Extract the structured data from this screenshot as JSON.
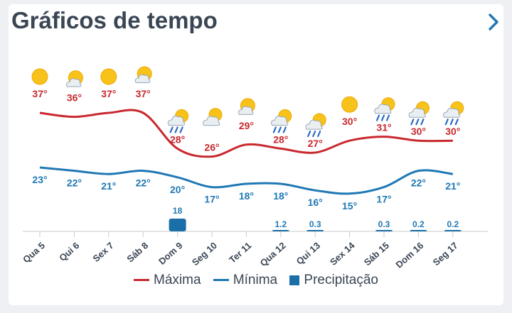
{
  "title": "Gráficos de tempo",
  "colors": {
    "max": "#c8292f",
    "min": "#1f78b4",
    "precip": "#1a6fa8",
    "grid": "#c9c9c9",
    "text": "#3a4654"
  },
  "legend": {
    "max": "Máxima",
    "min": "Mínima",
    "precip": "Precipitação"
  },
  "chart_data": {
    "type": "line",
    "categories": [
      "Qua 5",
      "Qui 6",
      "Sex 7",
      "Sáb 8",
      "Dom 9",
      "Seg 10",
      "Ter 11",
      "Qua 12",
      "Qui 13",
      "Sex 14",
      "Sáb 15",
      "Dom 16",
      "Seg 17"
    ],
    "icons": [
      "sun-icon",
      "partly-cloudy-icon",
      "sun-icon",
      "partly-cloudy-icon",
      "rain-sun-icon",
      "cloud-sun-icon",
      "partly-cloudy-icon",
      "rain-sun-icon",
      "rain-sun-icon",
      "sun-icon",
      "rain-sun-icon",
      "rain-sun-icon",
      "rain-sun-icon"
    ],
    "series": [
      {
        "name": "Máxima",
        "values": [
          37,
          36,
          37,
          37,
          28,
          26,
          29,
          28,
          27,
          30,
          31,
          30,
          30
        ],
        "labels": [
          "37°",
          "36°",
          "37°",
          "37°",
          "28°",
          "26°",
          "29°",
          "28°",
          "27°",
          "30°",
          "31°",
          "30°",
          "30°"
        ]
      },
      {
        "name": "Mínima",
        "values": [
          23,
          22,
          21,
          22,
          20,
          17,
          18,
          18,
          16,
          15,
          17,
          22,
          21
        ],
        "labels": [
          "23°",
          "22°",
          "21°",
          "22°",
          "20°",
          "17°",
          "18°",
          "18°",
          "16°",
          "15°",
          "17°",
          "22°",
          "21°"
        ]
      },
      {
        "name": "Precipitação",
        "values": [
          0,
          0,
          0,
          0,
          18,
          0,
          0,
          1.2,
          0.3,
          0,
          0.3,
          0.2,
          0.2
        ],
        "labels": [
          "",
          "",
          "",
          "",
          "18",
          "",
          "",
          "1.2",
          "0.3",
          "",
          "0.3",
          "0.2",
          "0.2"
        ]
      }
    ]
  }
}
